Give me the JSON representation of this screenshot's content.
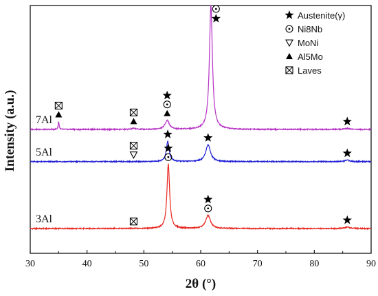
{
  "chart_data": {
    "type": "line",
    "xlabel": "2θ (°)",
    "ylabel": "Intensity (a.u.)",
    "xlim": [
      30,
      90
    ],
    "xticks": [
      "30",
      "40",
      "50",
      "60",
      "70",
      "80",
      "90"
    ],
    "grid": false,
    "legend_position": "top-right",
    "legend": [
      {
        "symbol": "star",
        "label": "Austenite(γ)"
      },
      {
        "symbol": "circle-dot",
        "label": "Ni8Nb"
      },
      {
        "symbol": "triangle-open",
        "label": "MoNi"
      },
      {
        "symbol": "triangle-filled",
        "label": "Al5Mo"
      },
      {
        "symbol": "box-x",
        "label": "Laves"
      }
    ],
    "series": [
      {
        "name": "3Al",
        "color": "#e8261f",
        "baseline": 0.1,
        "peaks": [
          {
            "x": 54.3,
            "h": 0.26,
            "w": 0.28
          },
          {
            "x": 61.3,
            "h": 0.053,
            "w": 0.5
          },
          {
            "x": 85.8,
            "h": 0.006,
            "w": 0.5
          }
        ],
        "markers": [
          {
            "x": 48.2,
            "symbols": [
              "box-x"
            ]
          },
          {
            "x": 54.3,
            "symbols": [
              "star",
              "circle-dot"
            ]
          },
          {
            "x": 61.3,
            "symbols": [
              "star",
              "circle-dot"
            ]
          },
          {
            "x": 85.8,
            "symbols": [
              "star"
            ]
          }
        ]
      },
      {
        "name": "5Al",
        "color": "#1f1fd6",
        "baseline": 0.37,
        "peaks": [
          {
            "x": 54.2,
            "h": 0.082,
            "w": 0.3
          },
          {
            "x": 61.3,
            "h": 0.068,
            "w": 0.5
          },
          {
            "x": 85.8,
            "h": 0.006,
            "w": 0.5
          }
        ],
        "markers": [
          {
            "x": 48.2,
            "symbols": [
              "box-x",
              "triangle-open"
            ]
          },
          {
            "x": 54.2,
            "symbols": [
              "star"
            ]
          },
          {
            "x": 61.3,
            "symbols": [
              "star"
            ]
          },
          {
            "x": 85.8,
            "symbols": [
              "star"
            ]
          }
        ]
      },
      {
        "name": "7Al",
        "color": "#b530c4",
        "baseline": 0.5,
        "peaks": [
          {
            "x": 35.0,
            "h": 0.032,
            "w": 0.1
          },
          {
            "x": 48.2,
            "h": 0.004,
            "w": 0.4
          },
          {
            "x": 54.1,
            "h": 0.036,
            "w": 0.45
          },
          {
            "x": 61.8,
            "h": 0.5,
            "w": 0.32
          },
          {
            "x": 85.8,
            "h": 0.004,
            "w": 0.5
          }
        ],
        "markers": [
          {
            "x": 35.0,
            "symbols": [
              "box-x",
              "triangle-filled"
            ]
          },
          {
            "x": 48.2,
            "symbols": [
              "box-x",
              "triangle-filled"
            ]
          },
          {
            "x": 54.1,
            "symbols": [
              "star",
              "circle-dot",
              "triangle-filled"
            ]
          },
          {
            "x": 62.7,
            "symbols": [
              "circle-dot",
              "star"
            ],
            "top": true
          },
          {
            "x": 85.8,
            "symbols": [
              "star"
            ]
          }
        ]
      }
    ]
  }
}
